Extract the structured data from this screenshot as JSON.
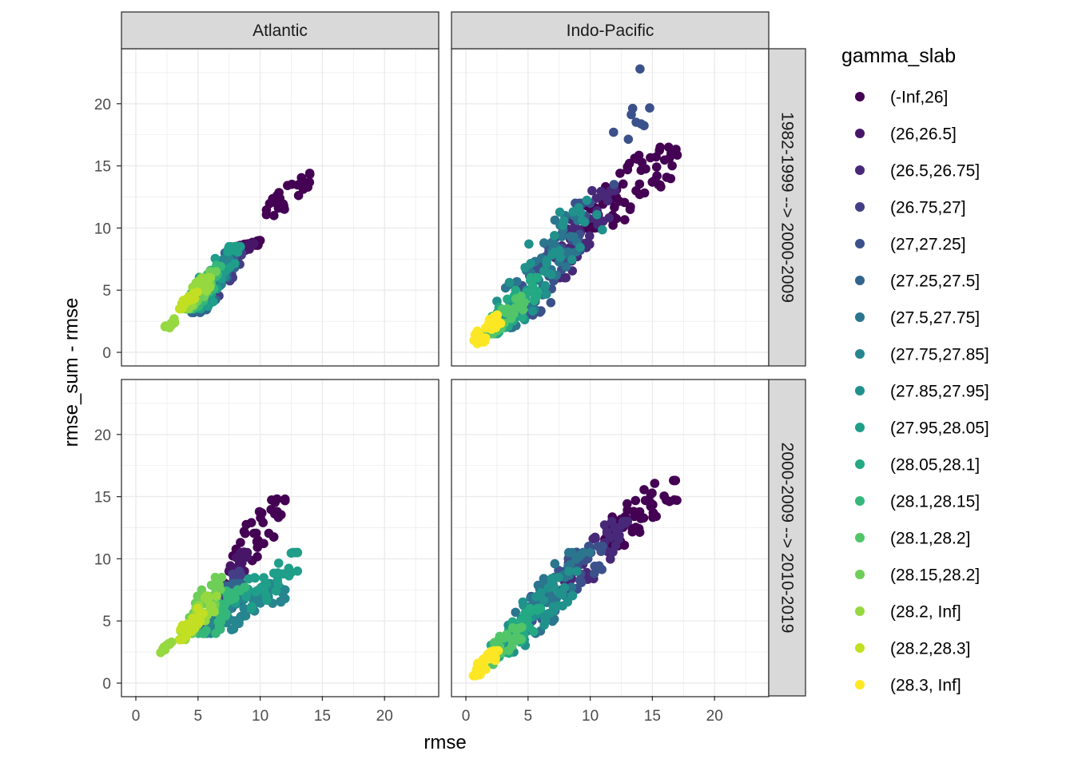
{
  "chart_data": {
    "type": "scatter",
    "xlabel": "rmse",
    "ylabel": "rmse_sum - rmse",
    "xlim": [
      -1,
      24.5
    ],
    "ylim": [
      -1,
      24.5
    ],
    "x_ticks": [
      0,
      5,
      10,
      15,
      20
    ],
    "y_ticks": [
      0,
      5,
      10,
      15,
      20
    ],
    "grid": true,
    "legend_position": "right",
    "legend_title": "gamma_slab",
    "col_facets": [
      "Atlantic",
      "Indo-Pacific"
    ],
    "row_facets": [
      "1982-1999 --> 2000-2009",
      "2000-2009 --> 2010-2019"
    ],
    "classes": [
      {
        "label": "(-Inf,26]",
        "color": "#440154"
      },
      {
        "label": "(26,26.5]",
        "color": "#481668"
      },
      {
        "label": "(26.5,26.75]",
        "color": "#482878"
      },
      {
        "label": "(26.75,27]",
        "color": "#433e85"
      },
      {
        "label": "(27,27.25]",
        "color": "#3b518b"
      },
      {
        "label": "(27.25,27.5]",
        "color": "#32648e"
      },
      {
        "label": "(27.5,27.75]",
        "color": "#2b758e"
      },
      {
        "label": "(27.75,27.85]",
        "color": "#26858e"
      },
      {
        "label": "(27.85,27.95]",
        "color": "#21918c"
      },
      {
        "label": "(27.95,28.05]",
        "color": "#1f9e89"
      },
      {
        "label": "(28.05,28.1]",
        "color": "#23a983"
      },
      {
        "label": "(28.1,28.15]",
        "color": "#35b779"
      },
      {
        "label": "(28.1,28.2]",
        "color": "#52c569"
      },
      {
        "label": "(28.15,28.2]",
        "color": "#6ece58"
      },
      {
        "label": "(28.2, Inf]",
        "color": "#95d840"
      },
      {
        "label": "(28.2,28.3]",
        "color": "#c2df23"
      },
      {
        "label": "(28.3, Inf]",
        "color": "#fde725"
      }
    ],
    "panels": [
      {
        "row": 0,
        "col": 0,
        "clusters": [
          {
            "class": 0,
            "x": [
              7.5,
              10
            ],
            "y": [
              8,
              9
            ],
            "n": 30
          },
          {
            "class": 0,
            "x": [
              10.5,
              14.5
            ],
            "y": [
              11,
              14.4
            ],
            "n": 28
          },
          {
            "class": 1,
            "x": [
              7,
              9.5
            ],
            "y": [
              7.5,
              8.8
            ],
            "n": 20
          },
          {
            "class": 3,
            "x": [
              5.5,
              8.5
            ],
            "y": [
              4,
              8
            ],
            "n": 40
          },
          {
            "class": 5,
            "x": [
              4.5,
              8
            ],
            "y": [
              3.2,
              8
            ],
            "n": 40
          },
          {
            "class": 7,
            "x": [
              4.5,
              7.5
            ],
            "y": [
              3.5,
              7.5
            ],
            "n": 45
          },
          {
            "class": 9,
            "x": [
              4.5,
              8.5
            ],
            "y": [
              3.5,
              8.5
            ],
            "n": 40
          },
          {
            "class": 11,
            "x": [
              4,
              7
            ],
            "y": [
              3.5,
              7
            ],
            "n": 30
          },
          {
            "class": 13,
            "x": [
              4,
              6.5
            ],
            "y": [
              3.5,
              6.5
            ],
            "n": 25
          },
          {
            "class": 14,
            "x": [
              3.5,
              6
            ],
            "y": [
              3.5,
              6
            ],
            "n": 25
          },
          {
            "class": 15,
            "x": [
              3.5,
              5
            ],
            "y": [
              3.5,
              5
            ],
            "n": 15
          },
          {
            "class": 14,
            "x": [
              2.3,
              3.2
            ],
            "y": [
              1.8,
              2.7
            ],
            "n": 10
          }
        ]
      },
      {
        "row": 0,
        "col": 1,
        "clusters": [
          {
            "class": 0,
            "x": [
              9.5,
              17
            ],
            "y": [
              10,
              16.5
            ],
            "n": 70
          },
          {
            "class": 2,
            "x": [
              6.5,
              12
            ],
            "y": [
              6,
              13
            ],
            "n": 50
          },
          {
            "class": 4,
            "x": [
              4.5,
              10
            ],
            "y": [
              3,
              12
            ],
            "n": 50
          },
          {
            "class": 4,
            "x": [
              11.5,
              15
            ],
            "y": [
              13.5,
              23.5
            ],
            "n": 10
          },
          {
            "class": 6,
            "x": [
              3,
              9
            ],
            "y": [
              2,
              11
            ],
            "n": 50
          },
          {
            "class": 8,
            "x": [
              2.5,
              11
            ],
            "y": [
              2,
              12.5
            ],
            "n": 40
          },
          {
            "class": 10,
            "x": [
              2,
              6
            ],
            "y": [
              1.5,
              6
            ],
            "n": 35
          },
          {
            "class": 12,
            "x": [
              1.5,
              5
            ],
            "y": [
              1.5,
              4.5
            ],
            "n": 25
          },
          {
            "class": 16,
            "x": [
              0.6,
              2.8
            ],
            "y": [
              0.7,
              3
            ],
            "n": 30
          }
        ]
      },
      {
        "row": 1,
        "col": 0,
        "clusters": [
          {
            "class": 0,
            "x": [
              7.5,
              12
            ],
            "y": [
              9,
              14.8
            ],
            "n": 45
          },
          {
            "class": 1,
            "x": [
              7,
              9
            ],
            "y": [
              7.5,
              10.5
            ],
            "n": 25
          },
          {
            "class": 3,
            "x": [
              6,
              8.5
            ],
            "y": [
              5,
              9
            ],
            "n": 25
          },
          {
            "class": 5,
            "x": [
              5,
              8.5
            ],
            "y": [
              4,
              8
            ],
            "n": 35
          },
          {
            "class": 7,
            "x": [
              5,
              12
            ],
            "y": [
              4,
              8
            ],
            "n": 55
          },
          {
            "class": 9,
            "x": [
              8,
              13
            ],
            "y": [
              6,
              10.5
            ],
            "n": 35
          },
          {
            "class": 11,
            "x": [
              5,
              9
            ],
            "y": [
              4,
              8
            ],
            "n": 30
          },
          {
            "class": 13,
            "x": [
              4,
              7
            ],
            "y": [
              4,
              8.5
            ],
            "n": 30
          },
          {
            "class": 14,
            "x": [
              3.5,
              6.5
            ],
            "y": [
              3.5,
              7
            ],
            "n": 30
          },
          {
            "class": 15,
            "x": [
              3.5,
              5.5
            ],
            "y": [
              3.5,
              6
            ],
            "n": 20
          },
          {
            "class": 14,
            "x": [
              2,
              3
            ],
            "y": [
              2.4,
              3.3
            ],
            "n": 10
          }
        ]
      },
      {
        "row": 1,
        "col": 1,
        "clusters": [
          {
            "class": 0,
            "x": [
              11,
              17.2
            ],
            "y": [
              11,
              16.3
            ],
            "n": 60
          },
          {
            "class": 2,
            "x": [
              7.5,
              13
            ],
            "y": [
              7.5,
              13
            ],
            "n": 50
          },
          {
            "class": 4,
            "x": [
              5,
              11
            ],
            "y": [
              5,
              11
            ],
            "n": 50
          },
          {
            "class": 6,
            "x": [
              4,
              10
            ],
            "y": [
              4,
              10.5
            ],
            "n": 45
          },
          {
            "class": 8,
            "x": [
              2.5,
              9
            ],
            "y": [
              2.5,
              9
            ],
            "n": 50
          },
          {
            "class": 10,
            "x": [
              2,
              6
            ],
            "y": [
              2,
              6
            ],
            "n": 35
          },
          {
            "class": 12,
            "x": [
              1.5,
              4.5
            ],
            "y": [
              1.5,
              4.5
            ],
            "n": 25
          },
          {
            "class": 16,
            "x": [
              0.6,
              2.6
            ],
            "y": [
              0.6,
              2.6
            ],
            "n": 35
          }
        ]
      }
    ]
  }
}
